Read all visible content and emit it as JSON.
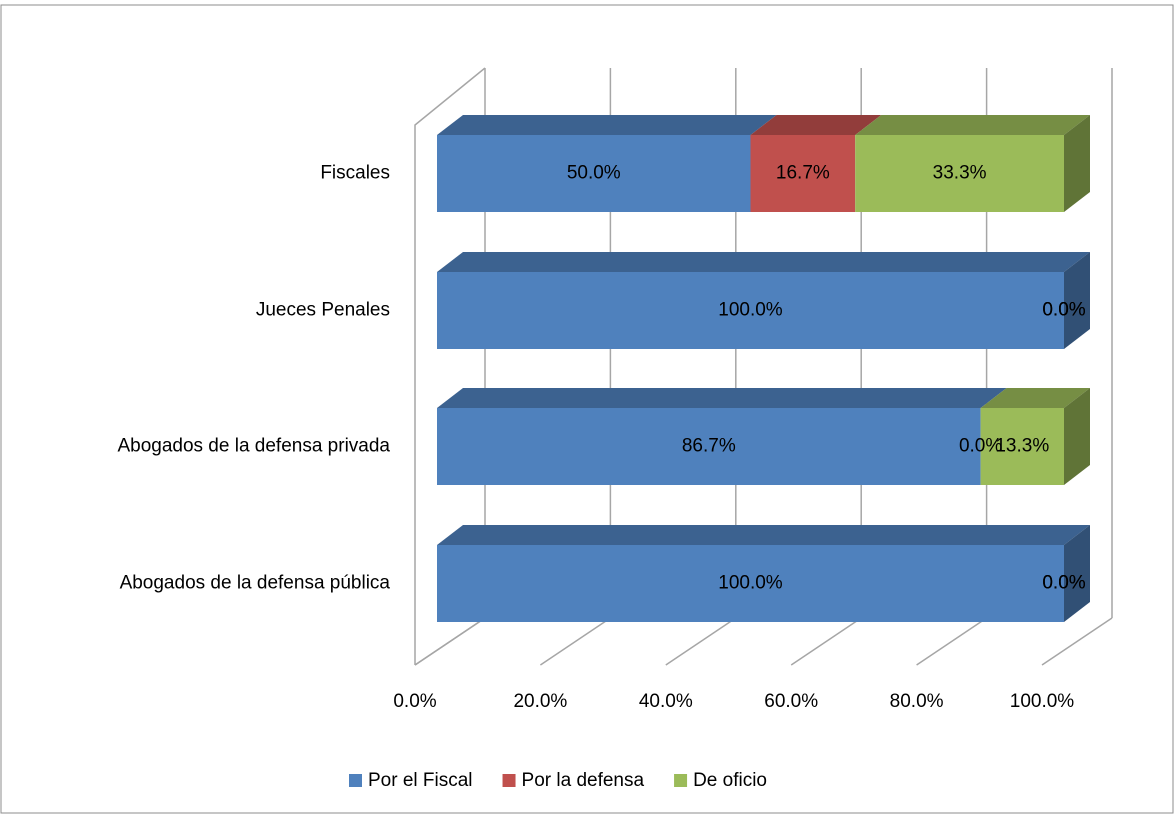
{
  "chart_data": {
    "type": "bar3d_stacked_horizontal",
    "categories": [
      "Fiscales",
      "Jueces Penales",
      "Abogados de la defensa privada",
      "Abogados de la defensa pública"
    ],
    "series": [
      {
        "name": "Por el Fiscal",
        "color": "#4f81bd",
        "values": [
          50.0,
          100.0,
          86.7,
          100.0
        ],
        "value_labels": [
          "50.0%",
          "100.0%",
          "86.7%",
          "100.0%"
        ]
      },
      {
        "name": "Por la defensa",
        "color": "#c0504d",
        "values": [
          16.7,
          0.0,
          0.0,
          0.0
        ],
        "value_labels": [
          "16.7%",
          "0.0%",
          "0.0%",
          "0.0%"
        ]
      },
      {
        "name": "De oficio",
        "color": "#9bbb59",
        "values": [
          33.3,
          0.0,
          13.3,
          0.0
        ],
        "value_labels": [
          "33.3%",
          "0.0%",
          "13.3%",
          "0.0%"
        ]
      }
    ],
    "xlim": [
      0,
      100
    ],
    "xticks": [
      {
        "value": 0,
        "label": "0.0%"
      },
      {
        "value": 20,
        "label": "20.0%"
      },
      {
        "value": 40,
        "label": "40.0%"
      },
      {
        "value": 60,
        "label": "60.0%"
      },
      {
        "value": 80,
        "label": "80.0%"
      },
      {
        "value": 100,
        "label": "100.0%"
      }
    ],
    "grid": true,
    "legend": "bottom"
  }
}
